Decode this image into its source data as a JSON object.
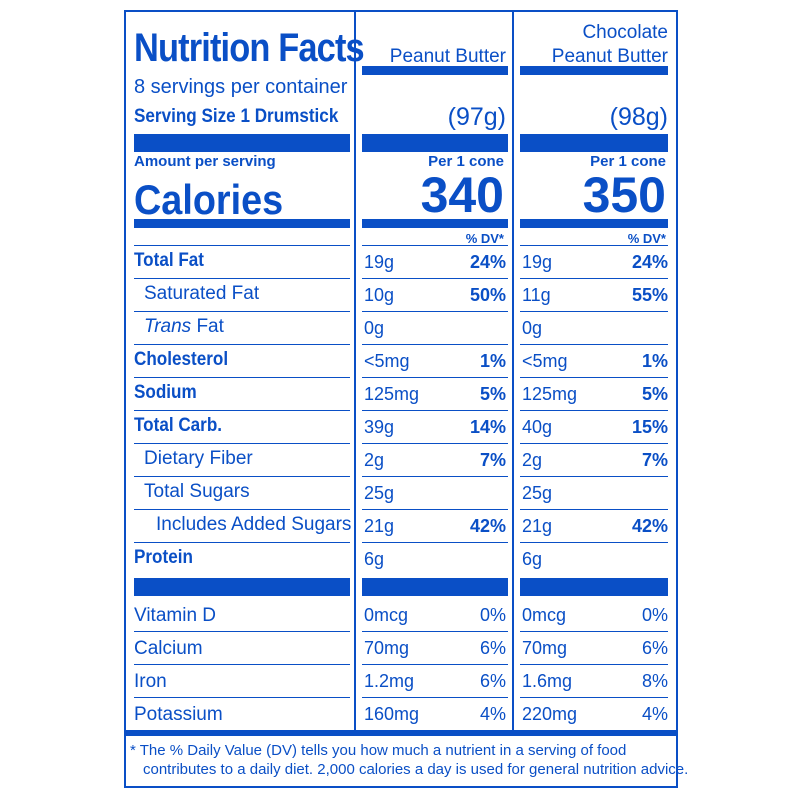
{
  "title": "Nutrition Facts",
  "servings": "8 servings per container",
  "serving_size_label": "Serving Size 1 Drumstick",
  "amount_per_serving": "Amount per serving",
  "calories_label": "Calories",
  "dv_header": "% DV*",
  "columns": [
    {
      "name_line1": "",
      "name_line2": "Peanut Butter",
      "serving_weight": "(97g)",
      "per_label": "Per 1 cone",
      "calories": "340"
    },
    {
      "name_line1": "Chocolate",
      "name_line2": "Peanut Butter",
      "serving_weight": "(98g)",
      "per_label": "Per 1 cone",
      "calories": "350"
    }
  ],
  "nutrients": [
    {
      "label": "Total Fat",
      "style": "bold",
      "indent": 0,
      "c1_amt": "19g",
      "c1_dv": "24%",
      "c2_amt": "19g",
      "c2_dv": "24%"
    },
    {
      "label": "Saturated Fat",
      "style": "normal",
      "indent": 1,
      "c1_amt": "10g",
      "c1_dv": "50%",
      "c2_amt": "11g",
      "c2_dv": "55%"
    },
    {
      "label_italic": "Trans",
      "label": " Fat",
      "style": "normal",
      "indent": 1,
      "c1_amt": "0g",
      "c1_dv": "",
      "c2_amt": "0g",
      "c2_dv": ""
    },
    {
      "label": "Cholesterol",
      "style": "bold",
      "indent": 0,
      "c1_amt": "<5mg",
      "c1_dv": "1%",
      "c2_amt": "<5mg",
      "c2_dv": "1%"
    },
    {
      "label": "Sodium",
      "style": "bold",
      "indent": 0,
      "c1_amt": "125mg",
      "c1_dv": "5%",
      "c2_amt": "125mg",
      "c2_dv": "5%"
    },
    {
      "label": "Total Carb.",
      "style": "bold",
      "indent": 0,
      "c1_amt": "39g",
      "c1_dv": "14%",
      "c2_amt": "40g",
      "c2_dv": "15%"
    },
    {
      "label": "Dietary Fiber",
      "style": "normal",
      "indent": 1,
      "c1_amt": "2g",
      "c1_dv": "7%",
      "c2_amt": "2g",
      "c2_dv": "7%"
    },
    {
      "label": "Total Sugars",
      "style": "normal",
      "indent": 1,
      "c1_amt": "25g",
      "c1_dv": "",
      "c2_amt": "25g",
      "c2_dv": ""
    },
    {
      "label": "Includes Added Sugars",
      "style": "normal",
      "indent": 2,
      "c1_amt": "21g",
      "c1_dv": "42%",
      "c2_amt": "21g",
      "c2_dv": "42%"
    },
    {
      "label": "Protein",
      "style": "bold",
      "indent": 0,
      "c1_amt": "6g",
      "c1_dv": "",
      "c2_amt": "6g",
      "c2_dv": ""
    }
  ],
  "vitamins": [
    {
      "label": "Vitamin D",
      "c1_amt": "0mcg",
      "c1_dv": "0%",
      "c2_amt": "0mcg",
      "c2_dv": "0%"
    },
    {
      "label": "Calcium",
      "c1_amt": "70mg",
      "c1_dv": "6%",
      "c2_amt": "70mg",
      "c2_dv": "6%"
    },
    {
      "label": "Iron",
      "c1_amt": "1.2mg",
      "c1_dv": "6%",
      "c2_amt": "1.6mg",
      "c2_dv": "8%"
    },
    {
      "label": "Potassium",
      "c1_amt": "160mg",
      "c1_dv": "4%",
      "c2_amt": "220mg",
      "c2_dv": "4%"
    }
  ],
  "footnote_line1": "* The % Daily Value (DV) tells you how much a nutrient in a serving of food",
  "footnote_line2": "contributes to a daily diet. 2,000 calories a day is used for general nutrition advice.",
  "accent_color": "#0a4fc6"
}
